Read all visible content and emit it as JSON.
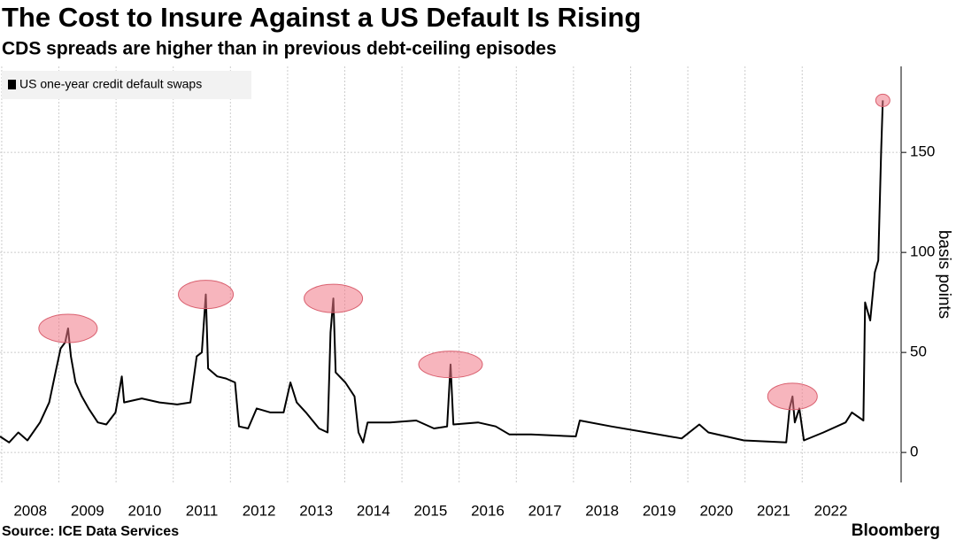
{
  "chart_data": {
    "type": "line",
    "title": "The Cost to Insure Against a US Default Is Rising",
    "subtitle": "CDS spreads are higher than in previous debt-ceiling episodes",
    "y_axis_label": "basis points",
    "source": "Source: ICE Data Services",
    "brand": "Bloomberg",
    "x": [
      2007.97,
      2008.13,
      2008.29,
      2008.45,
      2008.67,
      2008.83,
      2008.94,
      2009.03,
      2009.11,
      2009.16,
      2009.21,
      2009.29,
      2009.4,
      2009.52,
      2009.68,
      2009.83,
      2009.99,
      2010.1,
      2010.14,
      2010.45,
      2010.76,
      2011.07,
      2011.3,
      2011.41,
      2011.5,
      2011.57,
      2011.61,
      2011.77,
      2011.92,
      2012.08,
      2012.15,
      2012.31,
      2012.46,
      2012.7,
      2012.93,
      2013.05,
      2013.16,
      2013.32,
      2013.55,
      2013.7,
      2013.75,
      2013.8,
      2013.84,
      2014.01,
      2014.17,
      2014.24,
      2014.32,
      2014.4,
      2014.79,
      2015.25,
      2015.56,
      2015.79,
      2015.85,
      2015.9,
      2016.33,
      2016.64,
      2016.88,
      2017.26,
      2018.04,
      2018.11,
      2018.66,
      2019.28,
      2019.89,
      2020.2,
      2020.36,
      2020.98,
      2021.72,
      2021.78,
      2021.83,
      2021.87,
      2021.95,
      2022.03,
      2022.37,
      2022.76,
      2022.87,
      2023.07,
      2023.1,
      2023.19,
      2023.27,
      2023.33,
      2023.38,
      2023.41
    ],
    "series": [
      {
        "name": "US one-year credit default swaps",
        "color": "#000000",
        "values": [
          8,
          5,
          10,
          6,
          15,
          25,
          40,
          52,
          55,
          62,
          48,
          35,
          28,
          22,
          15,
          14,
          20,
          38,
          25,
          27,
          25,
          24,
          25,
          48,
          50,
          79,
          42,
          38,
          37,
          35,
          13,
          12,
          22,
          20,
          20,
          35,
          25,
          20,
          12,
          10,
          60,
          77,
          40,
          35,
          28,
          10,
          5,
          15,
          15,
          16,
          12,
          13,
          44,
          14,
          15,
          13,
          9,
          9,
          8,
          16,
          13,
          10,
          7,
          14,
          10,
          6,
          5,
          22,
          28,
          15,
          22,
          6,
          10,
          15,
          20,
          16,
          75,
          66,
          90,
          96,
          150,
          176
        ]
      }
    ],
    "xlim": [
      2007.97,
      2023.73
    ],
    "xticks": [
      2008,
      2009,
      2010,
      2011,
      2012,
      2013,
      2014,
      2015,
      2016,
      2017,
      2018,
      2019,
      2020,
      2021,
      2022
    ],
    "ylim": [
      -15,
      193
    ],
    "yticks": [
      0,
      50,
      100,
      150
    ],
    "grid": true,
    "legend": "top-left"
  }
}
